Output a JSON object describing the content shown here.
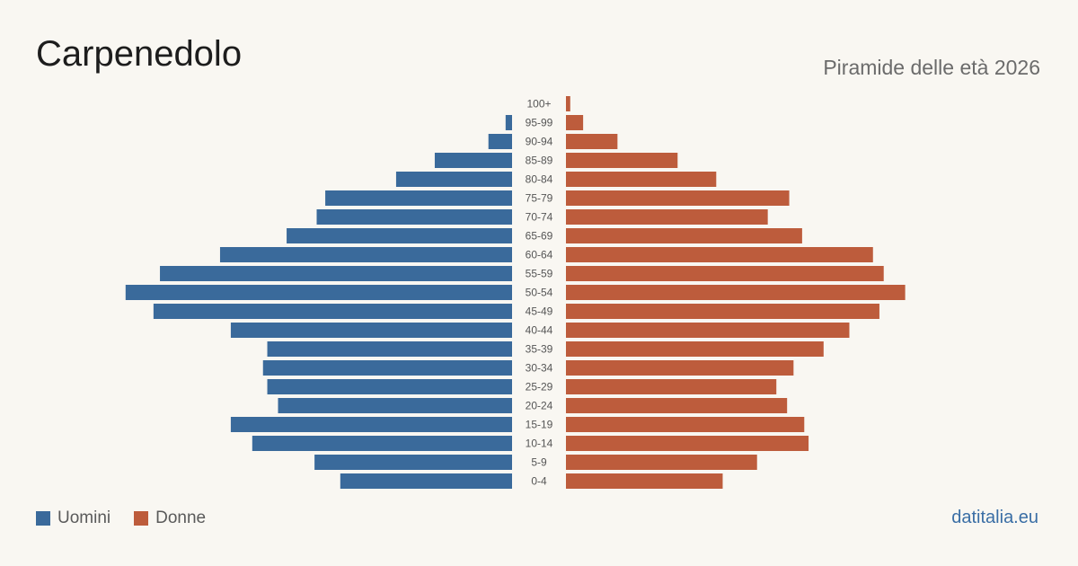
{
  "header": {
    "title": "Carpenedolo",
    "subtitle": "Piramide delle età 2026"
  },
  "legend": {
    "men_label": "Uomini",
    "women_label": "Donne"
  },
  "brand": "datitalia.eu",
  "colors": {
    "men": "#3a6a9b",
    "women": "#bd5c3c",
    "background": "#f9f7f2"
  },
  "chart_data": {
    "type": "bar",
    "orientation": "horizontal-pyramid",
    "categories": [
      "100+",
      "95-99",
      "90-94",
      "85-89",
      "80-84",
      "75-79",
      "70-74",
      "65-69",
      "60-64",
      "55-59",
      "50-54",
      "45-49",
      "40-44",
      "35-39",
      "30-34",
      "25-29",
      "20-24",
      "15-19",
      "10-14",
      "5-9",
      "0-4"
    ],
    "series": [
      {
        "name": "Uomini",
        "values": [
          0,
          3,
          11,
          36,
          54,
          87,
          91,
          105,
          136,
          164,
          180,
          167,
          131,
          114,
          116,
          114,
          109,
          131,
          121,
          92,
          80
        ]
      },
      {
        "name": "Donne",
        "values": [
          2,
          8,
          24,
          52,
          70,
          104,
          94,
          110,
          143,
          148,
          158,
          146,
          132,
          120,
          106,
          98,
          103,
          111,
          113,
          89,
          73
        ]
      }
    ]
  }
}
